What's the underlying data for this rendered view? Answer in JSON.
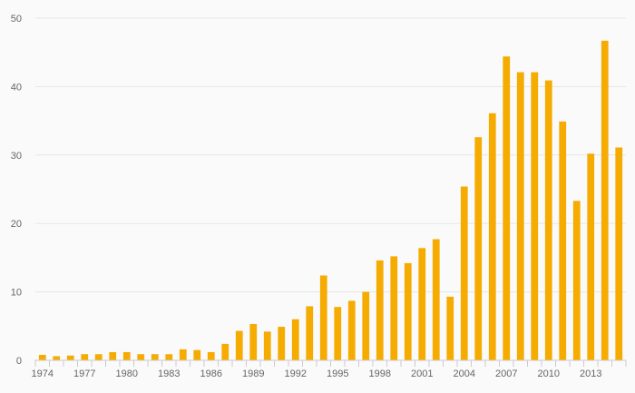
{
  "chart_data": {
    "type": "bar",
    "title": "",
    "xlabel": "",
    "ylabel": "",
    "ylim": [
      0,
      50
    ],
    "yticks": [
      0,
      10,
      20,
      30,
      40,
      50
    ],
    "xtick_labels": [
      "1974",
      "1977",
      "1980",
      "1983",
      "1986",
      "1989",
      "1992",
      "1995",
      "1998",
      "2001",
      "2004",
      "2007",
      "2010",
      "2013"
    ],
    "grid": true,
    "legend": "none",
    "bar_color": "#f5ab00",
    "categories": [
      "1974",
      "1975",
      "1976",
      "1977",
      "1978",
      "1979",
      "1980",
      "1981",
      "1982",
      "1983",
      "1984",
      "1985",
      "1986",
      "1987",
      "1988",
      "1989",
      "1990",
      "1991",
      "1992",
      "1993",
      "1994",
      "1995",
      "1996",
      "1997",
      "1998",
      "1999",
      "2000",
      "2001",
      "2002",
      "2003",
      "2004",
      "2005",
      "2006",
      "2007",
      "2008",
      "2009",
      "2010",
      "2011",
      "2012",
      "2013",
      "2014",
      "2015"
    ],
    "values": [
      0.8,
      0.6,
      0.7,
      0.9,
      0.9,
      1.2,
      1.2,
      0.9,
      0.9,
      0.9,
      1.6,
      1.5,
      1.2,
      2.4,
      4.3,
      5.3,
      4.2,
      4.9,
      6.0,
      7.9,
      12.4,
      7.8,
      8.7,
      10.0,
      14.6,
      15.2,
      14.2,
      16.4,
      17.7,
      9.3,
      25.4,
      32.6,
      36.1,
      44.4,
      42.1,
      42.1,
      40.9,
      34.9,
      23.3,
      30.2,
      46.7,
      31.1
    ]
  }
}
